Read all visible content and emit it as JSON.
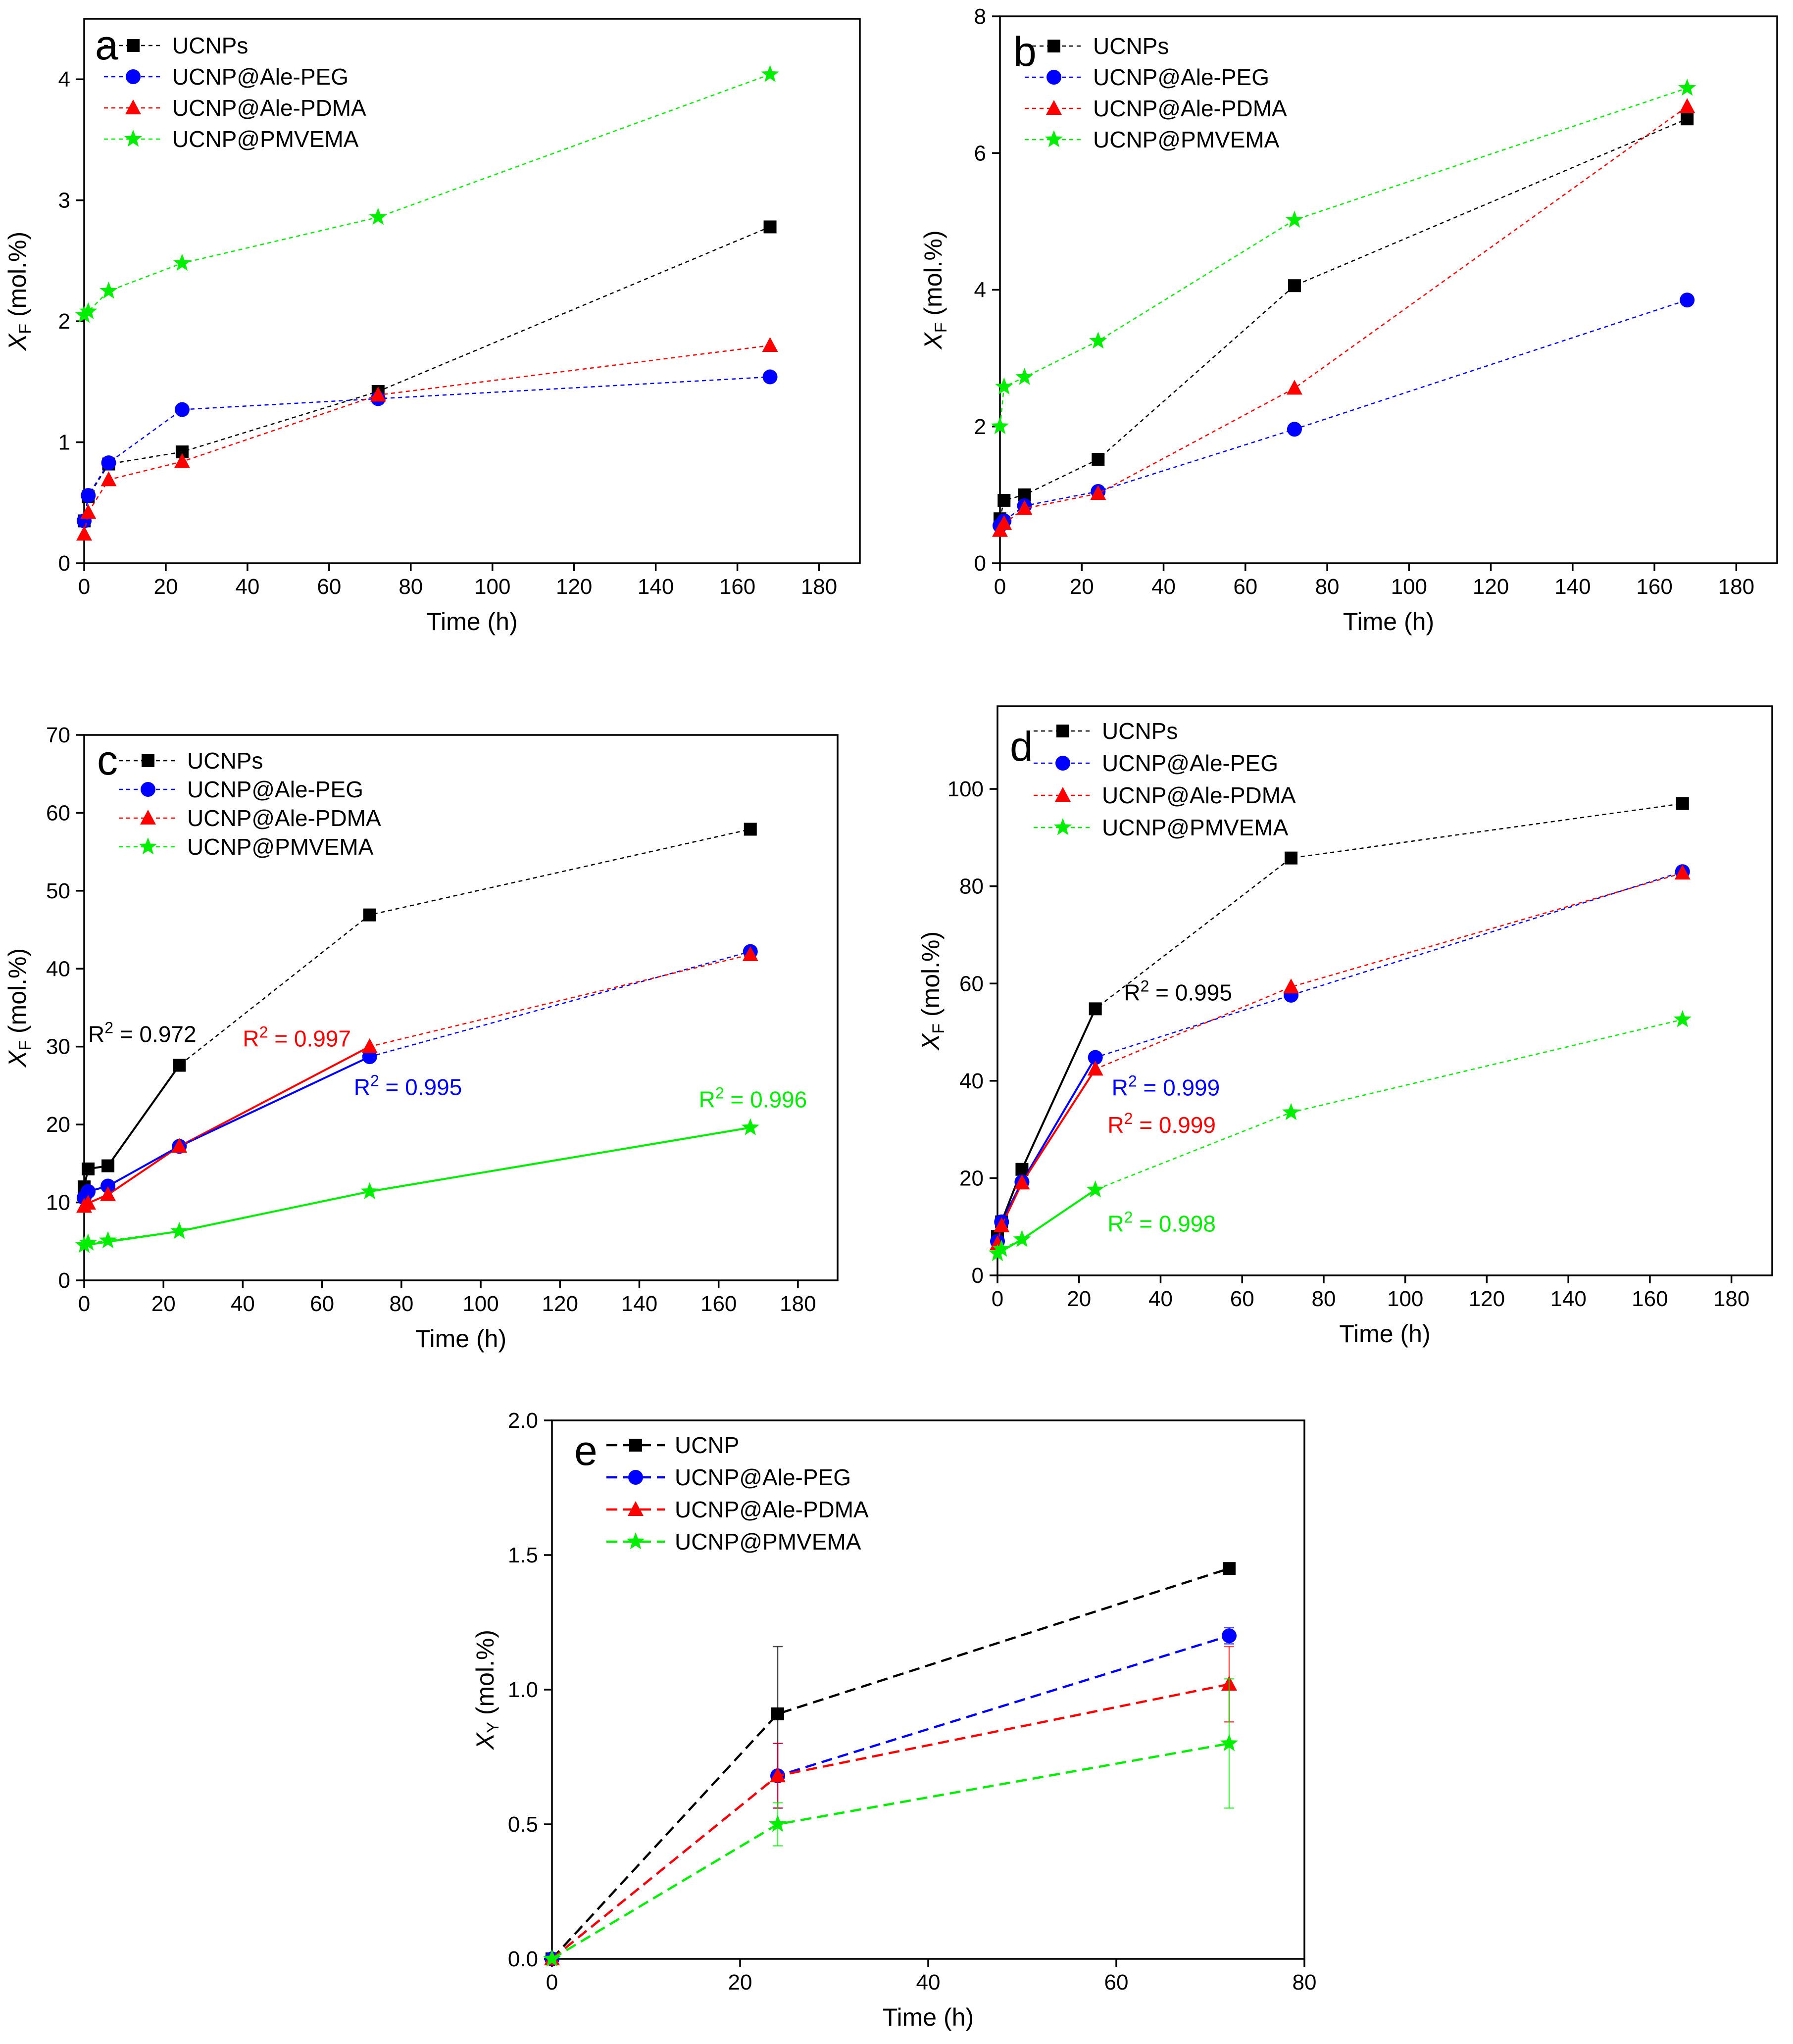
{
  "colors": {
    "UCNPs": "#000000",
    "PEG": "#0000ff",
    "PDMA": "#ff0000",
    "PMVEMA": "#00ee00"
  },
  "chart_data": [
    {
      "panel": "a",
      "type": "line",
      "xlabel": "Time (h)",
      "ylabel_main": "X",
      "ylabel_sub": "F",
      "ylabel_suffix": " (mol.%)",
      "xlim": [
        0,
        190
      ],
      "ylim": [
        0,
        4.5
      ],
      "xticks": [
        0,
        20,
        40,
        60,
        80,
        100,
        120,
        140,
        160,
        180
      ],
      "yticks": [
        0,
        1,
        2,
        3,
        4
      ],
      "ytick_labels": [
        "0",
        "1",
        "2",
        "3",
        "4"
      ],
      "legend_labels": [
        "UCNPs",
        "UCNP@Ale-PEG",
        "UCNP@Ale-PDMA",
        "UCNP@PMVEMA"
      ],
      "series": [
        {
          "name": "UCNPs",
          "color": "#000000",
          "marker": "square",
          "dashed": true,
          "x": [
            0,
            1,
            6,
            24,
            72,
            168
          ],
          "y": [
            0.35,
            0.55,
            0.82,
            0.92,
            1.42,
            2.78
          ]
        },
        {
          "name": "UCNP@Ale-PEG",
          "color": "#0000ff",
          "marker": "circle",
          "dashed": true,
          "x": [
            0,
            1,
            6,
            24,
            72,
            168
          ],
          "y": [
            0.35,
            0.56,
            0.83,
            1.27,
            1.36,
            1.54
          ]
        },
        {
          "name": "UCNP@Ale-PDMA",
          "color": "#ff0000",
          "marker": "triangle",
          "dashed": true,
          "x": [
            0,
            1,
            6,
            24,
            72,
            168
          ],
          "y": [
            0.24,
            0.42,
            0.69,
            0.84,
            1.39,
            1.8
          ]
        },
        {
          "name": "UCNP@PMVEMA",
          "color": "#00ee00",
          "marker": "star",
          "dashed": true,
          "x": [
            0,
            1,
            6,
            24,
            72,
            168
          ],
          "y": [
            2.05,
            2.08,
            2.25,
            2.48,
            2.86,
            4.04
          ]
        }
      ],
      "fits": [],
      "annotations": []
    },
    {
      "panel": "b",
      "type": "line",
      "xlabel": "Time (h)",
      "ylabel_main": "X",
      "ylabel_sub": "F",
      "ylabel_suffix": " (mol.%)",
      "xlim": [
        0,
        190
      ],
      "ylim": [
        0,
        8
      ],
      "xticks": [
        0,
        20,
        40,
        60,
        80,
        100,
        120,
        140,
        160,
        180
      ],
      "yticks": [
        0,
        2,
        4,
        6,
        8
      ],
      "ytick_labels": [
        "0",
        "2",
        "4",
        "6",
        "8"
      ],
      "legend_labels": [
        "UCNPs",
        "UCNP@Ale-PEG",
        "UCNP@Ale-PDMA",
        "UCNP@PMVEMA"
      ],
      "series": [
        {
          "name": "UCNPs",
          "color": "#000000",
          "marker": "square",
          "dashed": true,
          "x": [
            0,
            1,
            6,
            24,
            72,
            168
          ],
          "y": [
            0.65,
            0.92,
            1.0,
            1.52,
            4.06,
            6.5
          ]
        },
        {
          "name": "UCNP@Ale-PEG",
          "color": "#0000ff",
          "marker": "circle",
          "dashed": true,
          "x": [
            0,
            1,
            6,
            24,
            72,
            168
          ],
          "y": [
            0.55,
            0.62,
            0.84,
            1.05,
            1.96,
            3.85
          ]
        },
        {
          "name": "UCNP@Ale-PDMA",
          "color": "#ff0000",
          "marker": "triangle",
          "dashed": true,
          "x": [
            0,
            1,
            6,
            24,
            72,
            168
          ],
          "y": [
            0.48,
            0.58,
            0.8,
            1.02,
            2.56,
            6.68
          ]
        },
        {
          "name": "UCNP@PMVEMA",
          "color": "#00ee00",
          "marker": "star",
          "dashed": true,
          "x": [
            0,
            1,
            6,
            24,
            72,
            168
          ],
          "y": [
            2.0,
            2.58,
            2.72,
            3.25,
            5.02,
            6.95
          ]
        }
      ],
      "fits": [],
      "annotations": []
    },
    {
      "panel": "c",
      "type": "line",
      "xlabel": "Time (h)",
      "ylabel_main": "X",
      "ylabel_sub": "F",
      "ylabel_suffix": " (mol.%)",
      "xlim": [
        0,
        190
      ],
      "ylim": [
        0,
        70
      ],
      "xticks": [
        0,
        20,
        40,
        60,
        80,
        100,
        120,
        140,
        160,
        180
      ],
      "yticks": [
        0,
        10,
        20,
        30,
        40,
        50,
        60,
        70
      ],
      "ytick_labels": [
        "0",
        "10",
        "20",
        "30",
        "40",
        "50",
        "60",
        "70"
      ],
      "legend_labels": [
        "UCNPs",
        "UCNP@Ale-PEG",
        "UCNP@Ale-PDMA",
        "UCNP@PMVEMA"
      ],
      "series": [
        {
          "name": "UCNPs",
          "color": "#000000",
          "marker": "square",
          "dashed": true,
          "x": [
            0,
            1,
            6,
            24,
            72,
            168
          ],
          "y": [
            12.0,
            14.3,
            14.7,
            27.6,
            46.9,
            57.9
          ]
        },
        {
          "name": "UCNP@Ale-PEG",
          "color": "#0000ff",
          "marker": "circle",
          "dashed": true,
          "x": [
            0,
            1,
            6,
            24,
            72,
            168
          ],
          "y": [
            10.6,
            11.4,
            12.1,
            17.2,
            28.7,
            42.2
          ]
        },
        {
          "name": "UCNP@Ale-PDMA",
          "color": "#ff0000",
          "marker": "triangle",
          "dashed": true,
          "x": [
            0,
            1,
            6,
            24,
            72,
            168
          ],
          "y": [
            9.5,
            9.9,
            11.0,
            17.2,
            30.0,
            41.8
          ]
        },
        {
          "name": "UCNP@PMVEMA",
          "color": "#00ee00",
          "marker": "star",
          "dashed": true,
          "x": [
            0,
            1,
            6,
            24,
            72,
            168
          ],
          "y": [
            4.5,
            4.8,
            5.1,
            6.3,
            11.4,
            19.6
          ]
        }
      ],
      "fits": [
        {
          "color": "#000000",
          "x": [
            0,
            1,
            6,
            24
          ],
          "y": [
            12.0,
            14.3,
            14.7,
            27.6
          ]
        },
        {
          "color": "#ff0000",
          "x": [
            0,
            1,
            6,
            24,
            72
          ],
          "y": [
            9.5,
            9.9,
            11.0,
            17.2,
            30.0
          ]
        },
        {
          "color": "#0000ff",
          "x": [
            0,
            1,
            6,
            24,
            72
          ],
          "y": [
            10.6,
            11.4,
            12.1,
            17.2,
            28.7
          ]
        },
        {
          "color": "#00ee00",
          "x": [
            0,
            24,
            72,
            168
          ],
          "y": [
            4.5,
            6.3,
            11.4,
            19.6
          ]
        }
      ],
      "annotations": [
        {
          "color": "#000000",
          "r2_prefix": "R",
          "r2_sup": "2",
          "r2_suffix": " = 0.972",
          "x": 1,
          "y": 30.6
        },
        {
          "color": "#ff0000",
          "r2_prefix": "R",
          "r2_sup": "2",
          "r2_suffix": " = 0.997",
          "x": 40,
          "y": 30.0
        },
        {
          "color": "#0000ff",
          "r2_prefix": "R",
          "r2_sup": "2",
          "r2_suffix": " = 0.995",
          "x": 68,
          "y": 23.8
        },
        {
          "color": "#00ee00",
          "r2_prefix": "R",
          "r2_sup": "2",
          "r2_suffix": " = 0.996",
          "x": 155,
          "y": 22.2
        }
      ]
    },
    {
      "panel": "d",
      "type": "line",
      "xlabel": "Time (h)",
      "ylabel_main": "X",
      "ylabel_sub": "F",
      "ylabel_suffix": " (mol.%)",
      "xlim": [
        0,
        190
      ],
      "ylim": [
        0,
        117
      ],
      "xticks": [
        0,
        20,
        40,
        60,
        80,
        100,
        120,
        140,
        160,
        180
      ],
      "yticks": [
        0,
        20,
        40,
        60,
        80,
        100
      ],
      "ytick_labels": [
        "0",
        "20",
        "40",
        "60",
        "80",
        "100"
      ],
      "legend_labels": [
        "UCNPs",
        "UCNP@Ale-PEG",
        "UCNP@Ale-PDMA",
        "UCNP@PMVEMA"
      ],
      "series": [
        {
          "name": "UCNPs",
          "color": "#000000",
          "marker": "square",
          "dashed": true,
          "x": [
            0,
            1,
            6,
            24,
            72,
            168
          ],
          "y": [
            8.0,
            11.0,
            21.8,
            54.8,
            85.8,
            97.0
          ]
        },
        {
          "name": "UCNP@Ale-PEG",
          "color": "#0000ff",
          "marker": "circle",
          "dashed": true,
          "x": [
            0,
            1,
            6,
            24,
            72,
            168
          ],
          "y": [
            7.0,
            11.0,
            19.2,
            44.8,
            57.6,
            83.0
          ]
        },
        {
          "name": "UCNP@Ale-PDMA",
          "color": "#ff0000",
          "marker": "triangle",
          "dashed": true,
          "x": [
            0,
            1,
            6,
            24,
            72,
            168
          ],
          "y": [
            6.5,
            10.2,
            19.0,
            42.4,
            59.3,
            82.7
          ]
        },
        {
          "name": "UCNP@PMVEMA",
          "color": "#00ee00",
          "marker": "star",
          "dashed": true,
          "x": [
            0,
            1,
            6,
            24,
            72,
            168
          ],
          "y": [
            4.5,
            5.4,
            7.4,
            17.6,
            33.5,
            52.6
          ]
        }
      ],
      "fits": [
        {
          "color": "#000000",
          "x": [
            0,
            1,
            6,
            24
          ],
          "y": [
            8.0,
            11.0,
            21.8,
            54.8
          ]
        },
        {
          "color": "#0000ff",
          "x": [
            0,
            1,
            6,
            24
          ],
          "y": [
            7.0,
            11.0,
            19.2,
            44.8
          ]
        },
        {
          "color": "#ff0000",
          "x": [
            0,
            1,
            6,
            24
          ],
          "y": [
            6.5,
            10.2,
            19.0,
            42.4
          ]
        },
        {
          "color": "#00ee00",
          "x": [
            0,
            6,
            24
          ],
          "y": [
            4.5,
            7.4,
            17.6
          ]
        }
      ],
      "annotations": [
        {
          "color": "#000000",
          "r2_prefix": "R",
          "r2_sup": "2",
          "r2_suffix": " = 0.995",
          "x": 31,
          "y": 56.5
        },
        {
          "color": "#0000ff",
          "r2_prefix": "R",
          "r2_sup": "2",
          "r2_suffix": " = 0.999",
          "x": 28,
          "y": 37.0
        },
        {
          "color": "#ff0000",
          "r2_prefix": "R",
          "r2_sup": "2",
          "r2_suffix": " = 0.999",
          "x": 27,
          "y": 29.3
        },
        {
          "color": "#00ee00",
          "r2_prefix": "R",
          "r2_sup": "2",
          "r2_suffix": " = 0.998",
          "x": 27,
          "y": 9.0
        }
      ]
    },
    {
      "panel": "e",
      "type": "line",
      "xlabel": "Time (h)",
      "ylabel_main": "X",
      "ylabel_sub": "Y",
      "ylabel_suffix": " (mol.%)",
      "xlim": [
        0,
        80
      ],
      "ylim": [
        0,
        2.0
      ],
      "xticks": [
        0,
        20,
        40,
        60,
        80
      ],
      "yticks": [
        0,
        0.5,
        1.0,
        1.5,
        2.0
      ],
      "ytick_labels": [
        "0.0",
        "0.5",
        "1.0",
        "1.5",
        "2.0"
      ],
      "legend_labels": [
        "UCNP",
        "UCNP@Ale-PEG",
        "UCNP@Ale-PDMA",
        "UCNP@PMVEMA"
      ],
      "series": [
        {
          "name": "UCNP",
          "color": "#000000",
          "marker": "square",
          "dashed": true,
          "big_dash": true,
          "x": [
            0,
            24,
            72
          ],
          "y": [
            0.0,
            0.91,
            1.45
          ],
          "err": [
            0,
            0.25,
            0
          ]
        },
        {
          "name": "UCNP@Ale-PEG",
          "color": "#0000ff",
          "marker": "circle",
          "dashed": true,
          "big_dash": true,
          "x": [
            0,
            24,
            72
          ],
          "y": [
            0.0,
            0.68,
            1.2
          ],
          "err": [
            0,
            0.12,
            0.03
          ]
        },
        {
          "name": "UCNP@Ale-PDMA",
          "color": "#ff0000",
          "marker": "triangle",
          "dashed": true,
          "big_dash": true,
          "x": [
            0,
            24,
            72
          ],
          "y": [
            0.0,
            0.68,
            1.02
          ],
          "err": [
            0,
            0.12,
            0.14
          ]
        },
        {
          "name": "UCNP@PMVEMA",
          "color": "#00ee00",
          "marker": "star",
          "dashed": true,
          "big_dash": true,
          "x": [
            0,
            24,
            72
          ],
          "y": [
            0.0,
            0.5,
            0.8
          ],
          "err": [
            0,
            0.08,
            0.24
          ]
        }
      ],
      "fits": [],
      "annotations": []
    }
  ]
}
